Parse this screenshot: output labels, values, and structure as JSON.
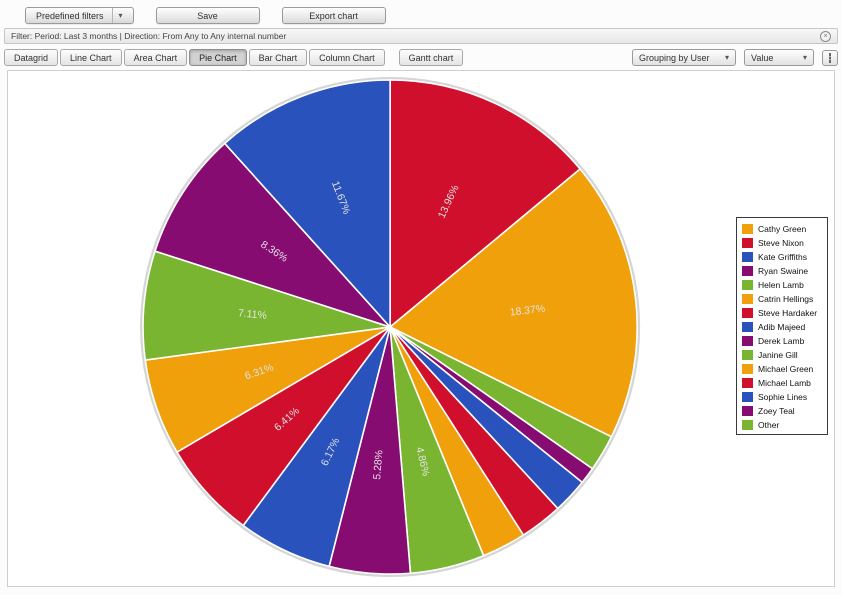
{
  "toolbar": {
    "predefined_filters": "Predefined filters",
    "save": "Save",
    "export_chart": "Export chart"
  },
  "filter_bar": {
    "text": "Filter: Period: Last 3 months | Direction: From Any to Any internal number"
  },
  "tabs": [
    "Datagrid",
    "Line Chart",
    "Area Chart",
    "Pie Chart",
    "Bar Chart",
    "Column Chart",
    "Gantt chart"
  ],
  "active_tab": "Pie Chart",
  "controls": {
    "grouping": "Grouping by User",
    "value": "Value"
  },
  "chart_data": {
    "type": "pie",
    "legend_position": "right",
    "labels_format": "percent",
    "label_shown_threshold_percent": 4.8,
    "slices": [
      {
        "name": "Cathy Green",
        "value": 18.37,
        "label": "18.37%",
        "color": "#efa00b"
      },
      {
        "name": "Steve Nixon",
        "value": 13.96,
        "label": "13.96%",
        "color": "#d00f2c"
      },
      {
        "name": "Kate Griffiths",
        "value": 11.67,
        "label": "11.67%",
        "color": "#2a52bd"
      },
      {
        "name": "Ryan Swaine",
        "value": 8.36,
        "label": "8.36%",
        "color": "#870c72"
      },
      {
        "name": "Helen Lamb",
        "value": 7.11,
        "label": "7.11%",
        "color": "#79b530"
      },
      {
        "name": "Catrin Hellings",
        "value": 6.31,
        "label": "6.31%",
        "color": "#efa00b"
      },
      {
        "name": "Steve Hardaker",
        "value": 6.41,
        "label": "6.41%",
        "color": "#d00f2c"
      },
      {
        "name": "Adib Majeed",
        "value": 6.17,
        "label": "6.17%",
        "color": "#2a52bd"
      },
      {
        "name": "Derek Lamb",
        "value": 5.28,
        "label": "5.28%",
        "color": "#870c72"
      },
      {
        "name": "Janine Gill",
        "value": 4.86,
        "label": "4.86%",
        "color": "#79b530"
      },
      {
        "name": "Michael Green",
        "value": 2.9,
        "label": null,
        "color": "#efa00b"
      },
      {
        "name": "Michael Lamb",
        "value": 2.8,
        "label": null,
        "color": "#d00f2c"
      },
      {
        "name": "Sophie Lines",
        "value": 2.3,
        "label": null,
        "color": "#2a52bd"
      },
      {
        "name": "Zoey Teal",
        "value": 1.1,
        "label": null,
        "color": "#870c72"
      },
      {
        "name": "Other",
        "value": 2.4,
        "label": null,
        "color": "#79b530"
      }
    ],
    "draw_order_indices": [
      1,
      0,
      14,
      13,
      12,
      11,
      10,
      9,
      8,
      7,
      6,
      5,
      4,
      3,
      2
    ],
    "start_angle_deg": -90,
    "direction": "clockwise"
  }
}
